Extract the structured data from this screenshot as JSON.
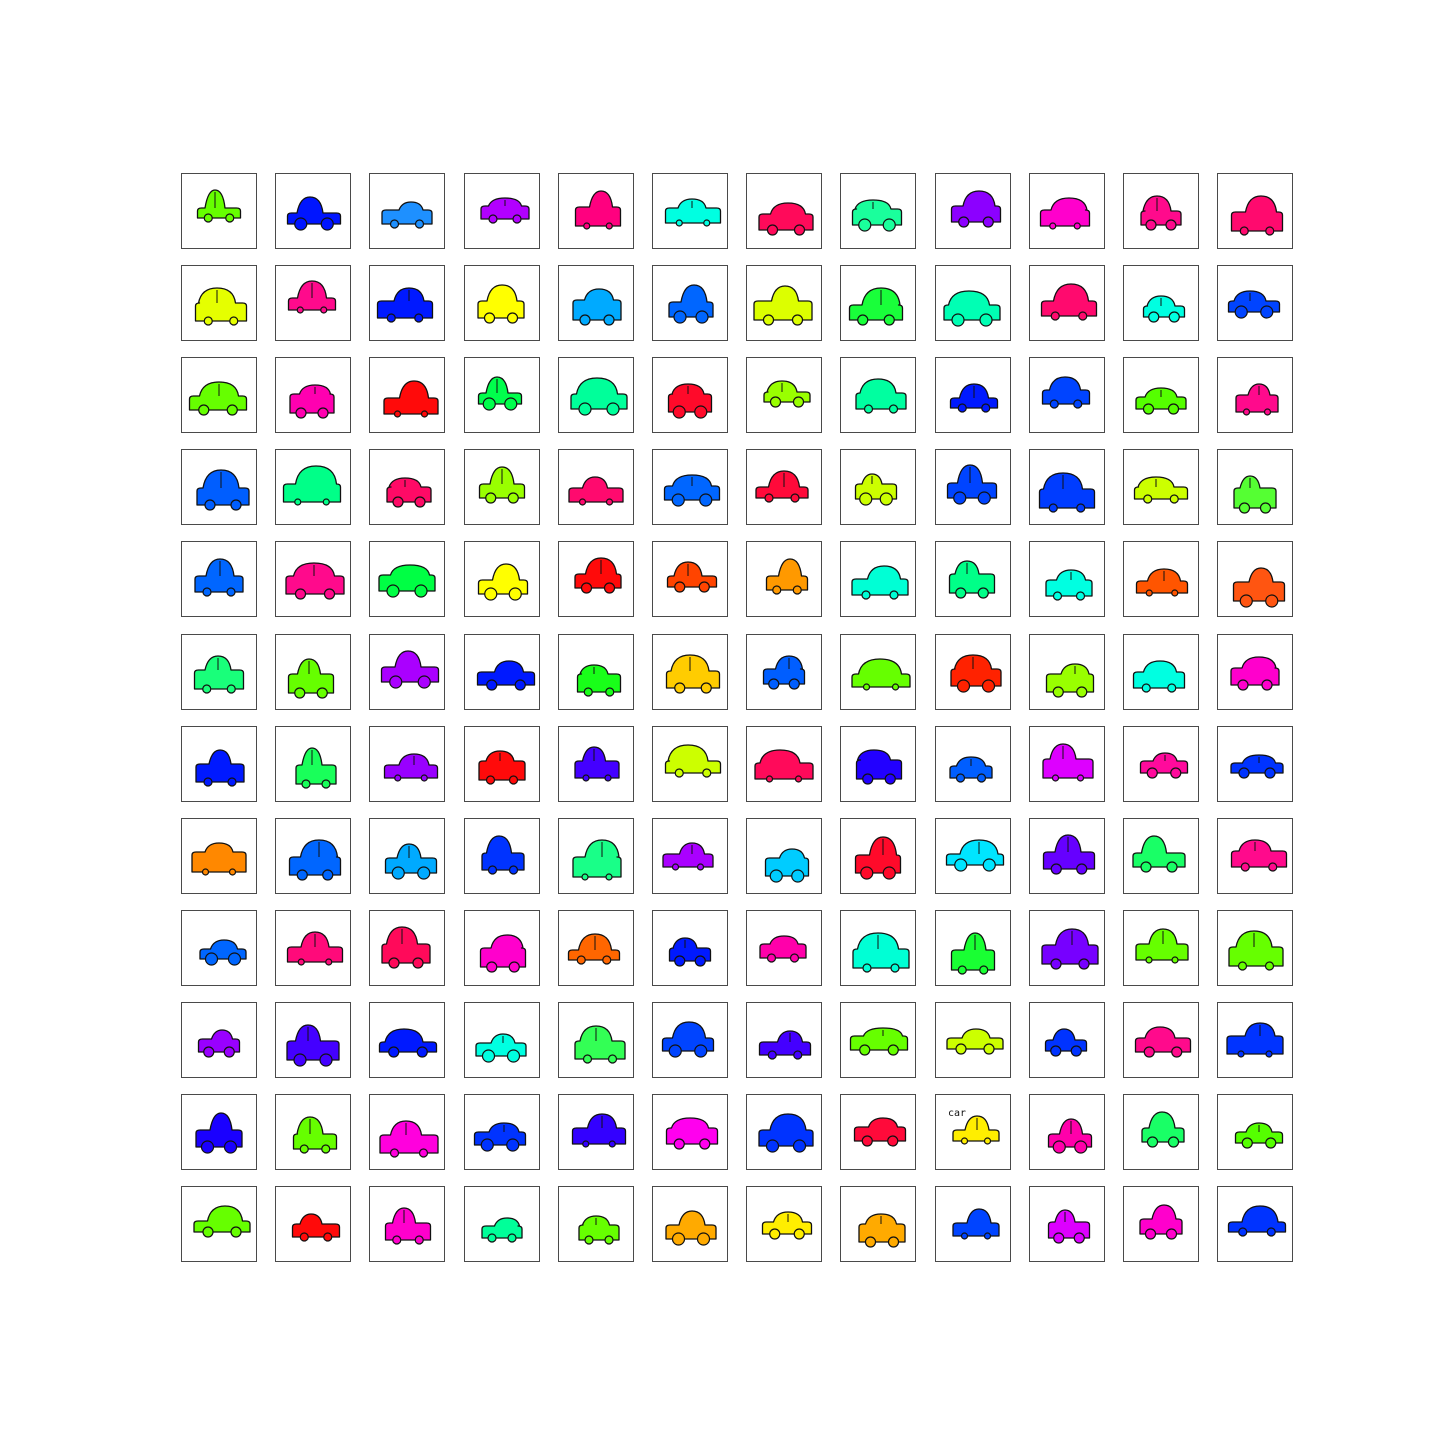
{
  "grid": {
    "rows": 12,
    "cols": 12,
    "caption_cell": 128,
    "caption_text": "car",
    "colors": [
      "#66ff00",
      "#0015ff",
      "#1e90ff",
      "#b200ff",
      "#ff007f",
      "#00ffe1",
      "#ff0a5a",
      "#1aff9c",
      "#8c00ff",
      "#ff00cc",
      "#ff0a8c",
      "#ff0a6e",
      "#e5ff00",
      "#ff0a8c",
      "#0019ff",
      "#ffff00",
      "#00aaff",
      "#0066ff",
      "#dcff00",
      "#19ff3a",
      "#00ffb4",
      "#ff0a6e",
      "#00ffe1",
      "#0044ff",
      "#66ff00",
      "#ff00b0",
      "#ff0a0a",
      "#00ff4c",
      "#00ff9a",
      "#ff0a2a",
      "#99ff00",
      "#00ffa0",
      "#0019ff",
      "#0044ff",
      "#55ff00",
      "#ff0a8c",
      "#005eff",
      "#00ff88",
      "#ff0a66",
      "#99ff00",
      "#ff0a6e",
      "#0066ff",
      "#ff0a3a",
      "#ccff00",
      "#0044ff",
      "#003cff",
      "#ccff00",
      "#55ff33",
      "#0066ff",
      "#ff0a8c",
      "#00ff44",
      "#ffff00",
      "#ff0a0a",
      "#ff4400",
      "#ff9900",
      "#00ffd5",
      "#00ff88",
      "#00ffe1",
      "#ff5500",
      "#ff5511",
      "#19ff7a",
      "#66ff00",
      "#aa00ff",
      "#0019ff",
      "#19ff19",
      "#ffcc00",
      "#005eff",
      "#66ff00",
      "#ff2200",
      "#99ff00",
      "#00ffe1",
      "#ff00cc",
      "#0019ff",
      "#19ff5a",
      "#9900ff",
      "#ff0a0a",
      "#4400ff",
      "#ccff00",
      "#ff0a5a",
      "#2200ff",
      "#005eff",
      "#dd00ff",
      "#ff0a9c",
      "#0033ff",
      "#ff8800",
      "#0066ff",
      "#00aaff",
      "#0033ff",
      "#19ff88",
      "#aa00ff",
      "#00ccff",
      "#ff0a2a",
      "#00e5ff",
      "#6600ff",
      "#19ff66",
      "#ff0a8c",
      "#0066ff",
      "#ff0a7a",
      "#ff0a5a",
      "#ff00cc",
      "#ff6600",
      "#0019ff",
      "#ff00aa",
      "#00ffd5",
      "#19ff33",
      "#7700ff",
      "#66ff00",
      "#66ff00",
      "#9900ff",
      "#4400ff",
      "#0019ff",
      "#00ffe1",
      "#33ff55",
      "#0044ff",
      "#4400ff",
      "#66ff00",
      "#ccff00",
      "#0033ff",
      "#ff0a8c",
      "#0033ff",
      "#1a00ff",
      "#66ff00",
      "#ff00dd",
      "#0033ff",
      "#3300ff",
      "#ff00ee",
      "#0033ff",
      "#ff0a3a",
      "#ffee00",
      "#ff00aa",
      "#19ff66",
      "#55ff00",
      "#66ff00",
      "#ff0a0a",
      "#ff00cc",
      "#00ff99",
      "#66ff00",
      "#ffaa00",
      "#ffee00",
      "#ffaa00",
      "#0044ff",
      "#dd00ff",
      "#ff00cc",
      "#0033ff"
    ]
  }
}
